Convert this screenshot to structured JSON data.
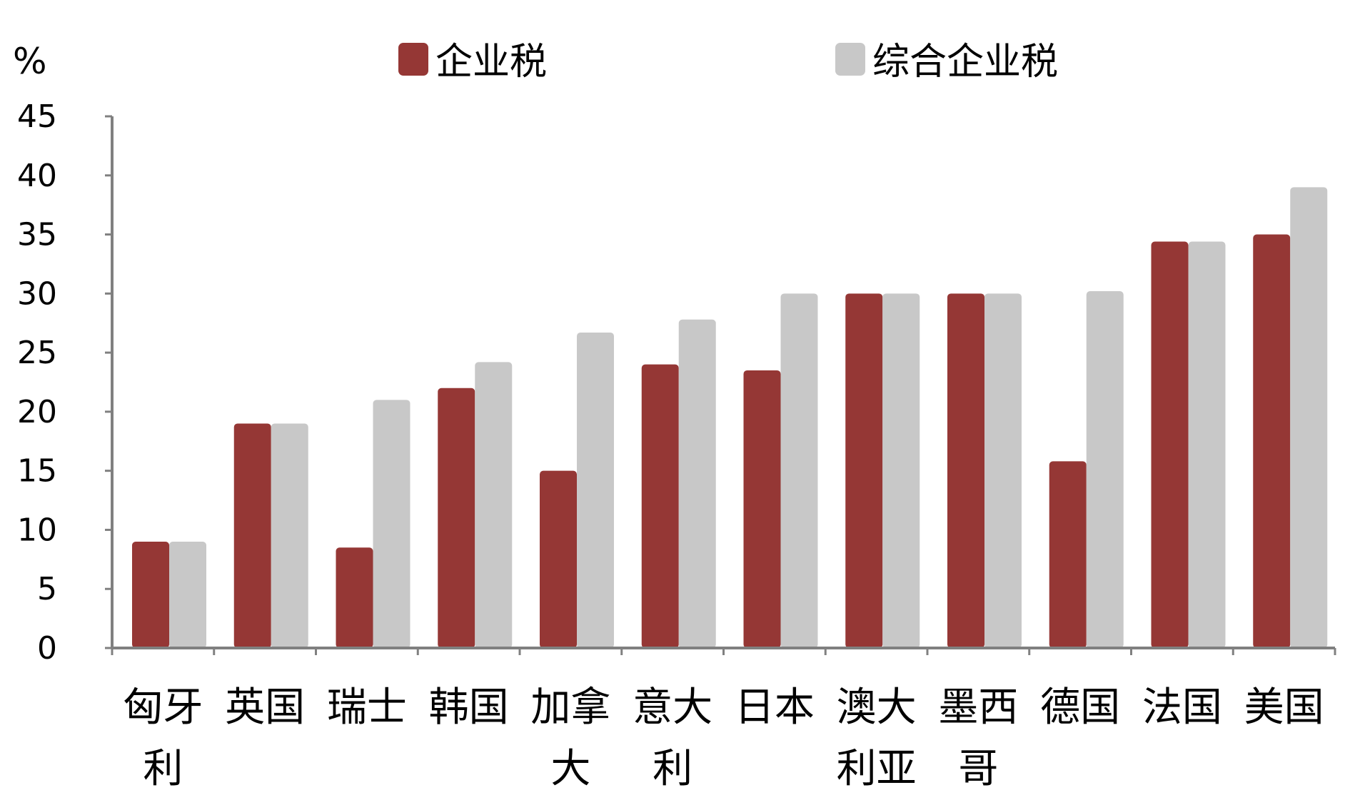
{
  "chart_data": {
    "type": "bar",
    "unit": "%",
    "categories": [
      "匈牙利",
      "英国",
      "瑞士",
      "韩国",
      "加拿大",
      "意大利",
      "日本",
      "澳大利亚",
      "墨西哥",
      "德国",
      "法国",
      "美国"
    ],
    "category_lines": [
      [
        "匈牙",
        "利"
      ],
      [
        "英国"
      ],
      [
        "瑞士"
      ],
      [
        "韩国"
      ],
      [
        "加拿",
        "大"
      ],
      [
        "意大",
        "利"
      ],
      [
        "日本"
      ],
      [
        "澳大",
        "利亚"
      ],
      [
        "墨西",
        "哥"
      ],
      [
        "德国"
      ],
      [
        "法国"
      ],
      [
        "美国"
      ]
    ],
    "series": [
      {
        "name": "企业税",
        "color": "#953735",
        "values": [
          9,
          19,
          8.5,
          22,
          15,
          24,
          23.5,
          30,
          30,
          15.8,
          34.4,
          35
        ]
      },
      {
        "name": "综合企业税",
        "color": "#c8c8c8",
        "values": [
          9,
          19,
          21,
          24.2,
          26.7,
          27.8,
          30,
          30,
          30,
          30.2,
          34.4,
          39
        ]
      }
    ],
    "yticks": [
      "0",
      "5",
      "10",
      "15",
      "20",
      "25",
      "30",
      "35",
      "40",
      "45"
    ],
    "ylim": [
      0,
      45
    ],
    "legend_position": "top",
    "axis_color": "#808080"
  }
}
